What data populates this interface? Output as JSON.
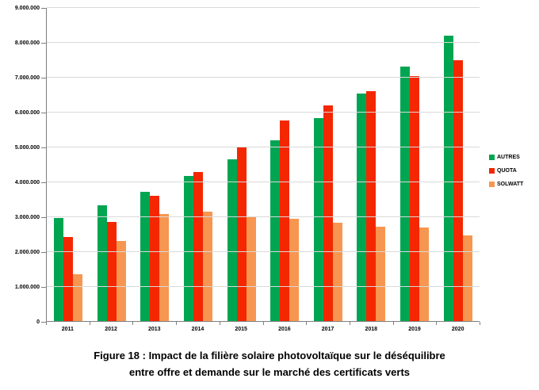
{
  "chart_data": {
    "type": "bar",
    "title": "",
    "xlabel": "",
    "ylabel": "",
    "categories": [
      "2011",
      "2012",
      "2013",
      "2014",
      "2015",
      "2016",
      "2017",
      "2018",
      "2019",
      "2020"
    ],
    "series": [
      {
        "name": "AUTRES",
        "color": "#00A551",
        "values": [
          2950000,
          3320000,
          3700000,
          4150000,
          4630000,
          5190000,
          5820000,
          6520000,
          7300000,
          8180000
        ]
      },
      {
        "name": "QUOTA",
        "color": "#F42700",
        "values": [
          2400000,
          2830000,
          3580000,
          4280000,
          5000000,
          5760000,
          6180000,
          6600000,
          7030000,
          7470000
        ]
      },
      {
        "name": "SOLWATT",
        "color": "#F79650",
        "values": [
          1330000,
          2300000,
          3070000,
          3140000,
          3000000,
          2940000,
          2810000,
          2710000,
          2680000,
          2450000
        ]
      }
    ],
    "ylim": [
      0,
      9000000
    ],
    "ytick_step": 1000000,
    "ytick_labels": [
      "0",
      "1.000.000",
      "2.000.000",
      "3.000.000",
      "4.000.000",
      "5.000.000",
      "6.000.000",
      "7.000.000",
      "8.000.000",
      "9.000.000"
    ],
    "grid": true,
    "legend_position": "right"
  },
  "caption": {
    "line1": "Figure 18 : Impact de la filière solaire photovoltaïque sur le déséquilibre",
    "line2": "entre offre et demande sur le marché des certificats verts"
  },
  "colors": {
    "gridline": "#d9d9d9",
    "axis": "#7f7f7f"
  }
}
